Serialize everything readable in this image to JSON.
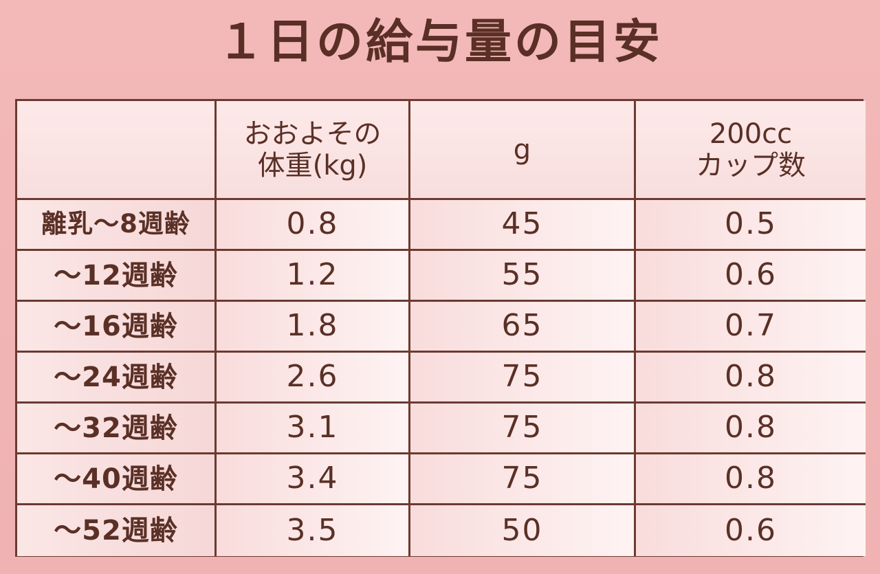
{
  "chart_data": {
    "type": "table",
    "title": "１日の給与量の目安",
    "columns": [
      {
        "line1": "",
        "line2": ""
      },
      {
        "line1": "おおよその",
        "line2": "体重(kg)"
      },
      {
        "line1": "g",
        "line2": ""
      },
      {
        "line1": "200cc",
        "line2": "カップ数"
      }
    ],
    "rows": [
      {
        "label": "離乳～8週齢",
        "weight_kg": "0.8",
        "grams": "45",
        "cups": "0.5"
      },
      {
        "label": "～12週齢",
        "weight_kg": "1.2",
        "grams": "55",
        "cups": "0.6"
      },
      {
        "label": "～16週齢",
        "weight_kg": "1.8",
        "grams": "65",
        "cups": "0.7"
      },
      {
        "label": "～24週齢",
        "weight_kg": "2.6",
        "grams": "75",
        "cups": "0.8"
      },
      {
        "label": "～32週齢",
        "weight_kg": "3.1",
        "grams": "75",
        "cups": "0.8"
      },
      {
        "label": "～40週齢",
        "weight_kg": "3.4",
        "grams": "75",
        "cups": "0.8"
      },
      {
        "label": "～52週齢",
        "weight_kg": "3.5",
        "grams": "50",
        "cups": "0.6"
      }
    ],
    "colors": {
      "background": "#f2b6b6",
      "text": "#5a2f25",
      "border": "#6b3a30"
    }
  }
}
